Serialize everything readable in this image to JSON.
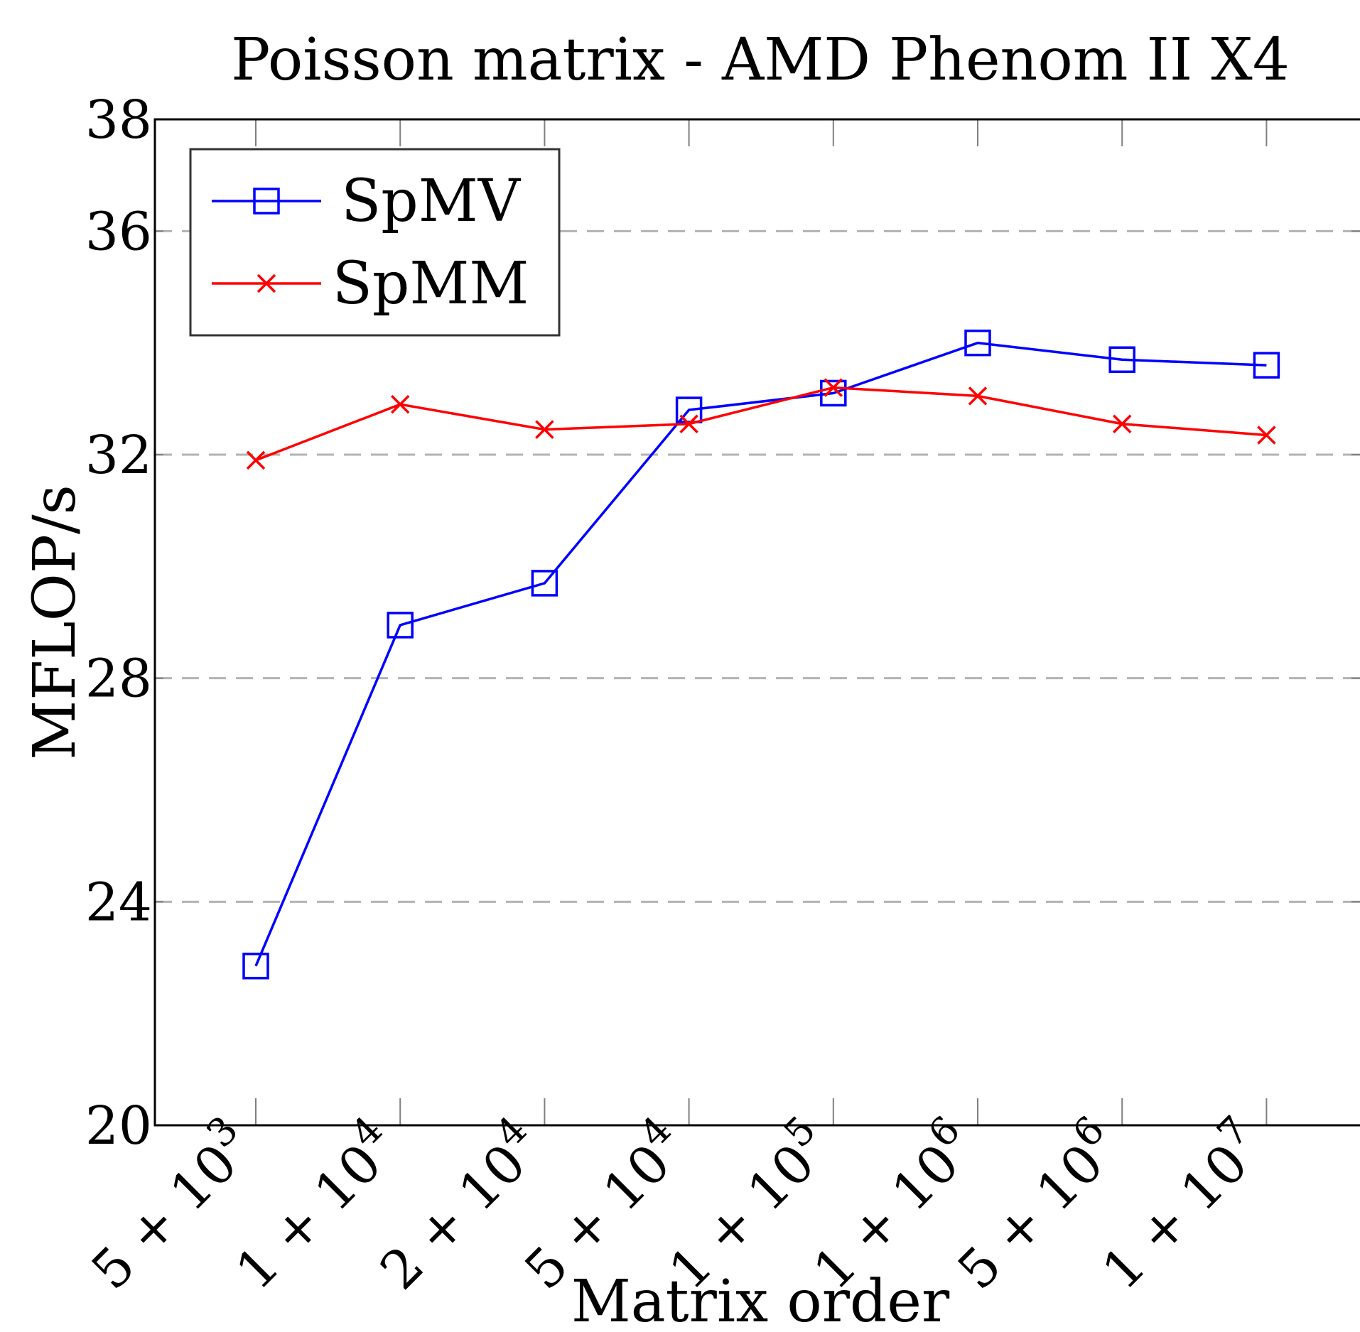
{
  "chart_data": {
    "type": "line",
    "title": "Poisson matrix - AMD Phenom II X4",
    "xlabel": "Matrix order",
    "ylabel": "MFLOP/s",
    "categories": [
      "5 + 10^3",
      "1 + 10^4",
      "2 + 10^4",
      "5 + 10^4",
      "1 + 10^5",
      "1 + 10^6",
      "5 + 10^6",
      "1 + 10^7"
    ],
    "category_ticks": [
      {
        "base": "5 + 10",
        "exp": "3"
      },
      {
        "base": "1 + 10",
        "exp": "4"
      },
      {
        "base": "2 + 10",
        "exp": "4"
      },
      {
        "base": "5 + 10",
        "exp": "4"
      },
      {
        "base": "1 + 10",
        "exp": "5"
      },
      {
        "base": "1 + 10",
        "exp": "6"
      },
      {
        "base": "5 + 10",
        "exp": "6"
      },
      {
        "base": "1 + 10",
        "exp": "7"
      }
    ],
    "ylim": [
      20,
      38
    ],
    "yticks": [
      20,
      24,
      28,
      32,
      36,
      38
    ],
    "grid": "horizontal dashed at y = 24, 28, 32, 36",
    "legend": "top-left",
    "series": [
      {
        "name": "SpMV",
        "color": "#0000ff",
        "marker": "square",
        "values": [
          22.85,
          28.95,
          29.7,
          32.8,
          33.1,
          34.0,
          33.7,
          33.6
        ]
      },
      {
        "name": "SpMM",
        "color": "#ff0000",
        "marker": "x",
        "values": [
          31.9,
          32.9,
          32.45,
          32.55,
          33.2,
          33.05,
          32.55,
          32.35
        ]
      }
    ]
  }
}
